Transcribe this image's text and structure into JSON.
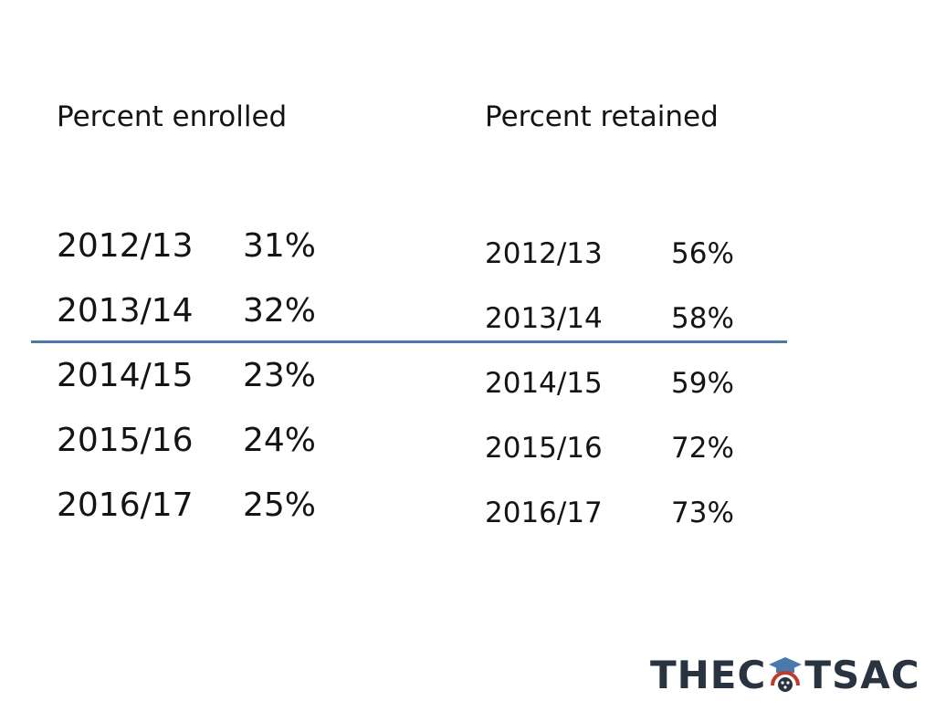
{
  "enrolled": {
    "heading": "Percent enrolled",
    "rows": [
      {
        "year": "2012/13",
        "value": "31%"
      },
      {
        "year": "2013/14",
        "value": "32%"
      },
      {
        "year": "2014/15",
        "value": "23%"
      },
      {
        "year": "2015/16",
        "value": "24%"
      },
      {
        "year": "2016/17",
        "value": "25%"
      }
    ]
  },
  "retained": {
    "heading": "Percent retained",
    "rows": [
      {
        "year": "2012/13",
        "value": "56%"
      },
      {
        "year": "2013/14",
        "value": "58%"
      },
      {
        "year": "2014/15",
        "value": "59%"
      },
      {
        "year": "2015/16",
        "value": "72%"
      },
      {
        "year": "2016/17",
        "value": "73%"
      }
    ]
  },
  "logo": {
    "left_text": "THEC",
    "right_text": "TSAC",
    "icon": "graduation-cap-state-seal-icon"
  },
  "colors": {
    "divider": "#4a7aab",
    "text": "#141414",
    "logo_text": "#2a3340",
    "logo_cap": "#4a7aab",
    "logo_arc": "#c0392b"
  }
}
